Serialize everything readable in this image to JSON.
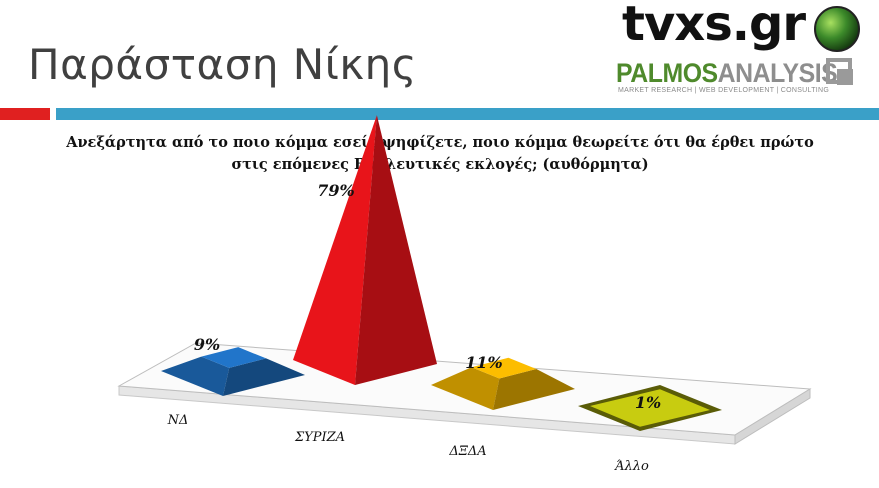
{
  "slide": {
    "title": "Παράσταση Νίκης",
    "question": "Ανεξάρτητα από το ποιο κόμμα εσείς ψηφίζετε, ποιο κόμμα θεωρείτε ότι θα έρθει πρώτο στις επόμενες Βουλευτικές εκλογές; (αυθόρμητα)"
  },
  "logos": {
    "tvxs": "tvxs.gr",
    "palmos_a": "PALMOS",
    "palmos_b": "ANALYSIS",
    "palmos_sub": "MARKET RESEARCH | WEB DEVELOPMENT | CONSULTING"
  },
  "chart_data": {
    "type": "bar",
    "style": "3d-pyramid",
    "categories": [
      "ΝΔ",
      "ΣΥΡΙΖΑ",
      "ΔΞΔΑ",
      "Άλλο"
    ],
    "values": [
      9,
      79,
      11,
      1
    ],
    "value_labels": [
      "9%",
      "79%",
      "11%",
      "1%"
    ],
    "unit": "%",
    "colors": [
      "#1f6fc0",
      "#e8141a",
      "#f0b400",
      "#c8cc10"
    ],
    "ylim": [
      0,
      80
    ],
    "grid": false,
    "legend": "none"
  }
}
